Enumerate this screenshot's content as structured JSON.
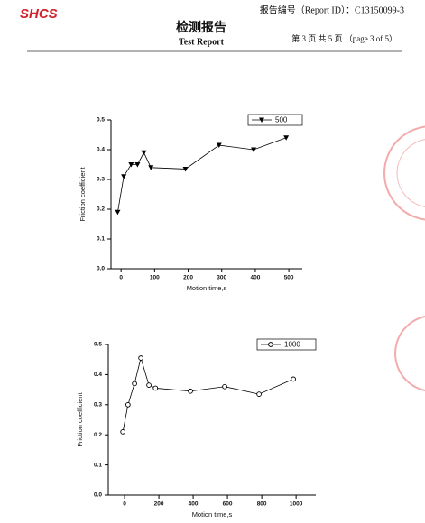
{
  "header": {
    "logo": "SHCS",
    "report_id": "报告编号（Report ID）：C13150099-3",
    "title_cn": "检测报告",
    "title_en": "Test Report",
    "page": "第 3 页  共 5 页 （page 3 of 5）"
  },
  "chart_data": [
    {
      "type": "line",
      "xlabel": "Motion time,s",
      "ylabel": "Friction coefficient",
      "xlim": [
        -30,
        540
      ],
      "xticks": [
        0,
        100,
        200,
        300,
        400,
        500
      ],
      "ylim": [
        0,
        0.5
      ],
      "yticks": [
        {
          "value": 0,
          "label": "0.0"
        },
        0.1,
        0.2,
        0.3,
        0.4,
        0.5
      ],
      "legend": "upper right",
      "series": [
        {
          "name": "500",
          "color": "#000000",
          "marker": "triangle-down",
          "x": [
            -10,
            8,
            30,
            49,
            68,
            89,
            192,
            292,
            395,
            492
          ],
          "values": [
            0.19,
            0.31,
            0.35,
            0.35,
            0.39,
            0.34,
            0.335,
            0.415,
            0.4,
            0.44
          ]
        }
      ]
    },
    {
      "type": "line",
      "xlabel": "Motion time,s",
      "ylabel": "Friction coefficient",
      "xlim": [
        -95,
        1115
      ],
      "xticks": [
        0,
        200,
        400,
        600,
        800,
        1000
      ],
      "ylim": [
        0,
        0.5
      ],
      "yticks": [
        {
          "value": 0,
          "label": "0.0"
        },
        0.1,
        0.2,
        0.3,
        0.4,
        0.5
      ],
      "legend": "upper right",
      "series": [
        {
          "name": "1000",
          "color": "#000000",
          "marker": "circle-open",
          "x": [
            -10,
            20,
            58,
            95,
            142,
            180,
            384,
            584,
            784,
            984
          ],
          "values": [
            0.21,
            0.3,
            0.37,
            0.455,
            0.365,
            0.355,
            0.345,
            0.36,
            0.335,
            0.385
          ]
        }
      ]
    }
  ]
}
